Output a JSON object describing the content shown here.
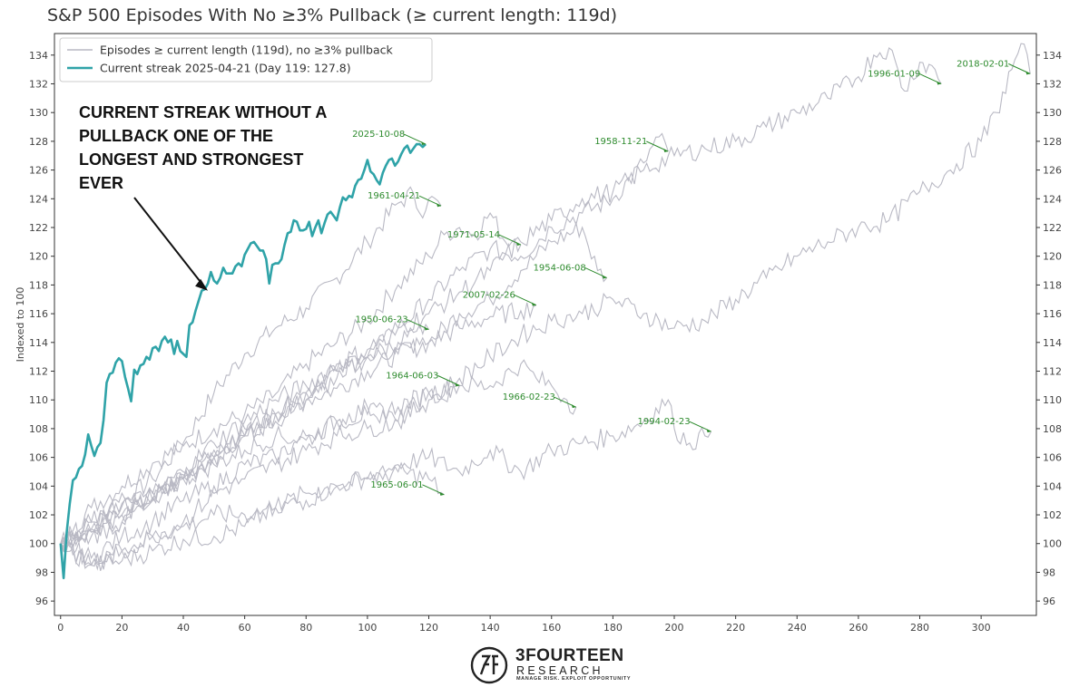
{
  "chart_data": {
    "type": "line",
    "title": "S&P 500 Episodes With No ≥3% Pullback (≥ current length: 119d)",
    "xlabel": "",
    "ylabel": "Indexed to 100",
    "xlim": [
      -2,
      318
    ],
    "ylim": [
      95,
      135.5
    ],
    "xticks": [
      0,
      20,
      40,
      60,
      80,
      100,
      120,
      140,
      160,
      180,
      200,
      220,
      240,
      260,
      280,
      300
    ],
    "yticks": [
      96,
      98,
      100,
      102,
      104,
      106,
      108,
      110,
      112,
      114,
      116,
      118,
      120,
      122,
      124,
      126,
      128,
      130,
      132,
      134
    ],
    "grid": false,
    "legend_position": "top-left",
    "legend": [
      {
        "label": "Episodes ≥ current length (119d), no ≥3% pullback",
        "color": "#b9b9c4"
      },
      {
        "label": "Current streak 2025-04-21 (Day 119: 127.8)",
        "color": "#2fa3a8"
      }
    ],
    "callout": {
      "lines": [
        "CURRENT STREAK WITHOUT A",
        "PULLBACK ONE OF THE",
        "LONGEST AND STRONGEST",
        "EVER"
      ],
      "arrow_target": {
        "x": 48,
        "y": 117.6
      }
    },
    "current_streak": {
      "name": "Current streak 2025-04-21 (Day 119: 127.8)",
      "color": "#2fa3a8",
      "x": [
        0,
        1,
        2,
        3,
        4,
        5,
        6,
        7,
        8,
        9,
        10,
        11,
        12,
        13,
        14,
        15,
        16,
        17,
        18,
        19,
        20,
        21,
        22,
        23,
        24,
        25,
        26,
        27,
        28,
        29,
        30,
        31,
        32,
        33,
        34,
        35,
        36,
        37,
        38,
        39,
        40,
        41,
        42,
        43,
        44,
        45,
        46,
        47,
        48,
        49,
        50,
        51,
        52,
        53,
        54,
        55,
        56,
        57,
        58,
        59,
        60,
        61,
        62,
        63,
        64,
        65,
        66,
        67,
        68,
        69,
        70,
        71,
        72,
        73,
        74,
        75,
        76,
        77,
        78,
        79,
        80,
        81,
        82,
        83,
        84,
        85,
        86,
        87,
        88,
        89,
        90,
        91,
        92,
        93,
        94,
        95,
        96,
        97,
        98,
        99,
        100,
        101,
        102,
        103,
        104,
        105,
        106,
        107,
        108,
        109,
        110,
        111,
        112,
        113,
        114,
        115,
        116,
        117,
        118,
        119
      ],
      "y": [
        100.0,
        97.6,
        100.8,
        102.8,
        104.4,
        104.6,
        105.2,
        105.4,
        106.2,
        107.6,
        106.8,
        106.1,
        106.7,
        107.0,
        108.6,
        111.2,
        111.8,
        111.9,
        112.6,
        112.9,
        112.7,
        111.6,
        110.8,
        109.9,
        112.1,
        111.8,
        112.4,
        112.5,
        113.0,
        112.8,
        113.6,
        113.7,
        113.4,
        114.1,
        114.4,
        114.0,
        114.2,
        113.2,
        114.1,
        113.4,
        113.2,
        113.0,
        115.2,
        115.4,
        116.2,
        116.9,
        117.6,
        117.7,
        118.1,
        118.9,
        118.3,
        118.1,
        118.5,
        119.2,
        118.8,
        118.8,
        118.8,
        119.3,
        119.5,
        119.3,
        120.1,
        120.5,
        120.9,
        121.0,
        120.7,
        120.4,
        120.4,
        119.8,
        118.1,
        119.4,
        119.5,
        119.5,
        119.8,
        120.8,
        121.6,
        121.7,
        122.5,
        122.4,
        121.8,
        121.8,
        121.9,
        122.4,
        121.4,
        122.0,
        122.5,
        121.6,
        122.3,
        122.9,
        123.1,
        122.8,
        122.5,
        123.4,
        124.1,
        123.9,
        124.2,
        124.1,
        124.9,
        125.3,
        125.4,
        126.0,
        126.7,
        125.9,
        125.7,
        125.3,
        125.0,
        125.8,
        126.3,
        126.7,
        126.8,
        126.3,
        126.6,
        127.1,
        127.5,
        127.7,
        127.2,
        127.5,
        127.8,
        127.8,
        127.6,
        127.8
      ]
    },
    "series": [
      {
        "x": [
          0,
          10,
          20,
          30,
          40,
          50,
          60,
          70,
          80,
          90,
          100,
          110,
          115,
          117,
          120,
          124
        ],
        "y": [
          100,
          101.5,
          102.8,
          104.5,
          107.0,
          110.5,
          113.2,
          115.0,
          116.4,
          118.5,
          121.0,
          123.7,
          124.4,
          123.0,
          124.0,
          123.5
        ]
      },
      {
        "x": [
          0,
          10,
          20,
          30,
          40,
          50,
          60,
          70,
          80,
          90,
          100,
          110,
          120,
          125,
          130,
          135,
          140,
          145,
          148,
          150
        ],
        "y": [
          100,
          102.5,
          104.0,
          105.6,
          106.8,
          108.0,
          109.0,
          110.4,
          112.5,
          114.0,
          115.5,
          118.0,
          120.0,
          121.5,
          122.0,
          121.5,
          123.0,
          121.0,
          121.2,
          120.8
        ]
      },
      {
        "x": [
          0,
          10,
          20,
          30,
          40,
          50,
          60,
          70,
          80,
          90,
          100,
          110,
          120,
          130,
          140,
          150,
          160,
          170,
          175,
          178
        ],
        "y": [
          100,
          100.8,
          102.0,
          103.2,
          104.5,
          106.0,
          107.5,
          108.5,
          110.0,
          110.8,
          112.0,
          113.2,
          114.0,
          116.0,
          117.0,
          119.0,
          121.0,
          122.0,
          119.0,
          118.5
        ]
      },
      {
        "x": [
          0,
          10,
          20,
          30,
          40,
          50,
          60,
          70,
          80,
          90,
          100,
          110,
          120,
          130,
          140,
          150,
          160,
          170,
          180,
          190,
          195,
          198
        ],
        "y": [
          100,
          101.0,
          102.0,
          103.0,
          104.5,
          106.0,
          107.5,
          109.0,
          110.5,
          112.0,
          113.0,
          115.0,
          117.0,
          119.0,
          120.5,
          120.0,
          122.0,
          123.0,
          124.0,
          126.5,
          128.3,
          127.3
        ]
      },
      {
        "x": [
          0,
          10,
          20,
          30,
          40,
          50,
          60,
          70,
          80,
          90,
          100,
          110,
          120,
          130,
          140,
          150,
          155
        ],
        "y": [
          100,
          101.5,
          102.6,
          103.6,
          104.8,
          106.5,
          108.0,
          109.0,
          110.0,
          111.5,
          113.0,
          113.5,
          114.0,
          115.0,
          115.8,
          116.2,
          116.6
        ]
      },
      {
        "x": [
          0,
          10,
          20,
          30,
          40,
          50,
          60,
          70,
          80,
          90,
          100,
          110,
          115,
          118,
          120
        ],
        "y": [
          100,
          101.0,
          103.5,
          103.0,
          104.5,
          106.0,
          107.5,
          109.0,
          110.5,
          112.0,
          113.0,
          114.0,
          114.7,
          114.6,
          114.9
        ]
      },
      {
        "x": [
          0,
          10,
          20,
          30,
          40,
          50,
          60,
          70,
          80,
          90,
          100,
          110,
          120,
          125,
          130
        ],
        "y": [
          100,
          99.0,
          100.5,
          101.5,
          103.0,
          104.0,
          105.5,
          106.0,
          107.5,
          108.5,
          109.5,
          108.5,
          110.5,
          110.0,
          111.0
        ]
      },
      {
        "x": [
          0,
          10,
          20,
          30,
          40,
          50,
          60,
          70,
          80,
          90,
          100,
          110,
          120,
          125
        ],
        "y": [
          100,
          98.5,
          98.8,
          99.5,
          100.3,
          100.5,
          101.2,
          102.5,
          103.0,
          104.0,
          104.6,
          105.0,
          104.5,
          103.4
        ]
      },
      {
        "x": [
          0,
          10,
          20,
          30,
          40,
          50,
          60,
          70,
          80,
          90,
          100,
          110,
          120,
          130,
          140,
          150,
          155,
          160,
          165,
          168
        ],
        "y": [
          100,
          100.5,
          101.5,
          103.0,
          104.5,
          105.5,
          106.5,
          107.5,
          107.2,
          108.5,
          109.0,
          109.5,
          110.5,
          111.0,
          111.0,
          112.5,
          111.5,
          111.0,
          110.0,
          109.5
        ]
      },
      {
        "x": [
          0,
          10,
          20,
          30,
          40,
          50,
          60,
          70,
          80,
          90,
          100,
          110,
          120,
          130,
          140,
          150,
          160,
          170,
          180,
          190,
          198,
          200,
          205,
          210,
          212
        ],
        "y": [
          100,
          98.5,
          99.5,
          100.5,
          101.2,
          102.0,
          102.0,
          102.5,
          103.5,
          104.0,
          104.5,
          105.5,
          106.0,
          105.0,
          106.5,
          105.0,
          106.5,
          107.0,
          107.5,
          108.5,
          110.0,
          108.0,
          107.0,
          107.5,
          107.8
        ]
      },
      {
        "x": [
          0,
          10,
          20,
          30,
          40,
          50,
          60,
          70,
          80,
          90,
          100,
          110,
          120,
          130,
          140,
          150,
          160,
          170,
          180,
          190,
          200,
          210,
          220,
          230,
          240,
          250,
          260,
          265,
          270,
          275,
          280,
          285,
          287
        ],
        "y": [
          100,
          100.8,
          101.5,
          103.5,
          105.0,
          107.0,
          108.5,
          110.0,
          111.0,
          112.5,
          113.5,
          115.0,
          116.0,
          117.5,
          119.0,
          121.0,
          122.5,
          124.0,
          124.5,
          126.0,
          127.0,
          127.5,
          128.0,
          129.0,
          130.0,
          131.0,
          132.5,
          134.0,
          134.5,
          131.5,
          133.5,
          133.0,
          132.0
        ]
      },
      {
        "x": [
          0,
          10,
          20,
          30,
          40,
          50,
          60,
          70,
          80,
          90,
          100,
          110,
          120,
          130,
          140,
          150,
          160,
          170,
          180,
          190,
          200,
          210,
          220,
          230,
          240,
          250,
          260,
          270,
          280,
          290,
          300,
          305,
          310,
          313,
          316
        ],
        "y": [
          100,
          98.5,
          99.5,
          100.5,
          101.5,
          103.5,
          104.5,
          105.5,
          106.5,
          107.5,
          108.0,
          108.5,
          110.0,
          111.5,
          113.0,
          114.5,
          115.5,
          116.0,
          117.0,
          116.0,
          115.0,
          115.5,
          117.0,
          118.5,
          120.0,
          121.0,
          122.0,
          122.5,
          124.5,
          126.0,
          128.0,
          130.0,
          133.0,
          134.8,
          132.7
        ]
      }
    ],
    "annotations": [
      {
        "label": "2025-10-08",
        "x": 119,
        "y": 127.8
      },
      {
        "label": "1961-04-21",
        "x": 124,
        "y": 123.5
      },
      {
        "label": "1971-05-14",
        "x": 150,
        "y": 120.8
      },
      {
        "label": "1954-06-08",
        "x": 178,
        "y": 118.5
      },
      {
        "label": "1958-11-21",
        "x": 198,
        "y": 127.3
      },
      {
        "label": "2007-02-26",
        "x": 155,
        "y": 116.6
      },
      {
        "label": "1950-06-23",
        "x": 120,
        "y": 114.9
      },
      {
        "label": "1964-06-03",
        "x": 130,
        "y": 111.0
      },
      {
        "label": "1966-02-23",
        "x": 168,
        "y": 109.5
      },
      {
        "label": "1994-02-23",
        "x": 212,
        "y": 107.8
      },
      {
        "label": "1965-06-01",
        "x": 125,
        "y": 103.4
      },
      {
        "label": "1996-01-09",
        "x": 287,
        "y": 132.0
      },
      {
        "label": "2018-02-01",
        "x": 316,
        "y": 132.7
      }
    ]
  },
  "brand": {
    "name": "3FOURTEEN",
    "sub": "RESEARCH",
    "tagline": "MANAGE RISK. EXPLOIT OPPORTUNITY"
  }
}
